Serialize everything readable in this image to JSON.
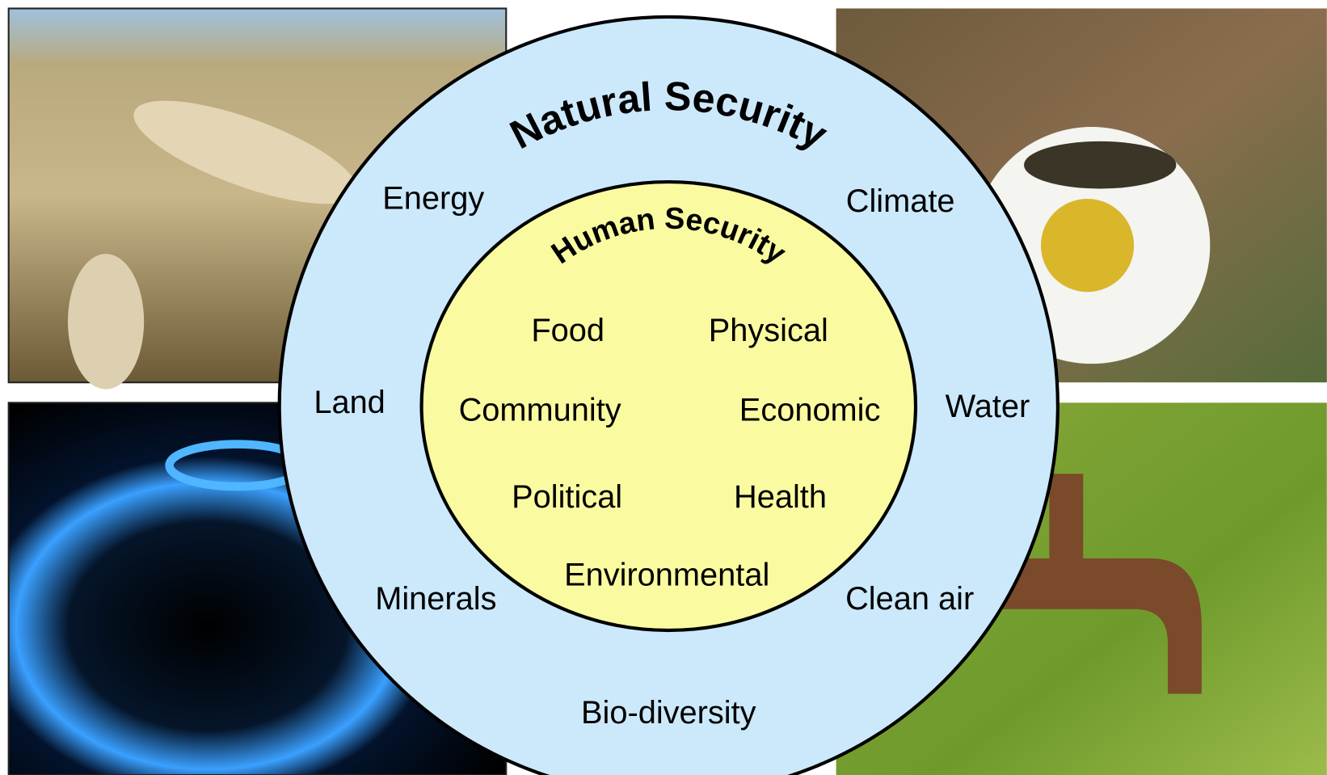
{
  "outer": {
    "title": "Natural Security",
    "items": [
      "Energy",
      "Climate",
      "Land",
      "Water",
      "Minerals",
      "Clean air",
      "Bio-diversity"
    ]
  },
  "inner": {
    "title": "Human Security",
    "items": [
      "Food",
      "Physical",
      "Community",
      "Economic",
      "Political",
      "Health",
      "Environmental"
    ]
  }
}
